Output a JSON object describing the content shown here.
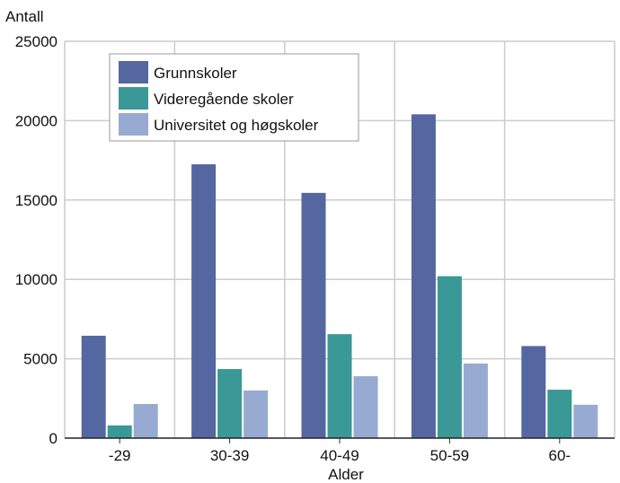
{
  "chart_data": {
    "type": "bar",
    "title": "",
    "ylabel": "Antall",
    "xlabel": "Alder",
    "categories": [
      "-29",
      "30-39",
      "40-49",
      "50-59",
      "60-"
    ],
    "series": [
      {
        "name": "Grunnskoler",
        "color": "#5567a0",
        "values": [
          6450,
          17250,
          15450,
          20400,
          5800
        ]
      },
      {
        "name": "Videregående skoler",
        "color": "#3a9896",
        "values": [
          800,
          4350,
          6550,
          10200,
          3050
        ]
      },
      {
        "name": "Universitet og høgskoler",
        "color": "#97aad2",
        "values": [
          2150,
          3000,
          3900,
          4700,
          2100
        ]
      }
    ],
    "ylim": [
      0,
      25000
    ],
    "yticks": [
      0,
      5000,
      10000,
      15000,
      20000,
      25000
    ],
    "grid": true,
    "legend_position": "top-left",
    "grid_color": "#cccccc"
  }
}
